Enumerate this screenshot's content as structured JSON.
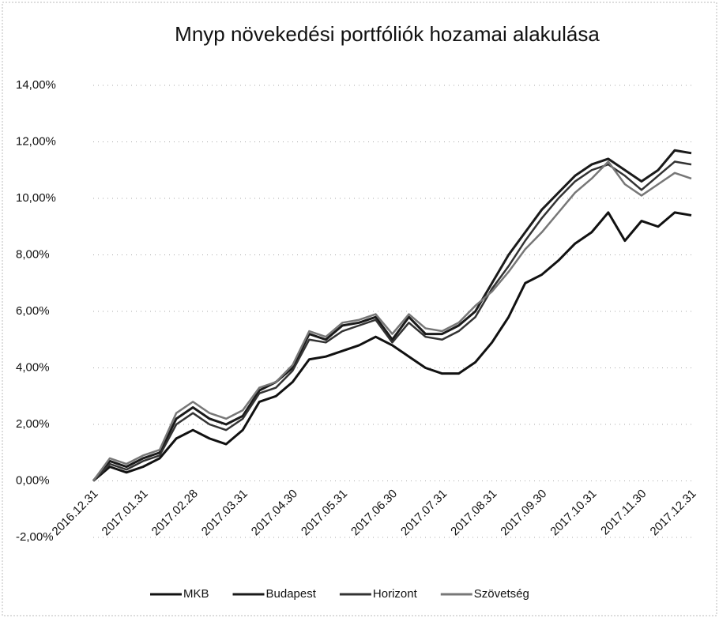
{
  "chart_data": {
    "type": "line",
    "title": "Mnyp növekedési portfóliók hozamai alakulása",
    "categories": [
      "2016.12.31",
      null,
      null,
      "2017.01.31",
      null,
      null,
      "2017.02.28",
      null,
      null,
      "2017.03.31",
      null,
      null,
      "2017.04.30",
      null,
      null,
      "2017.05.31",
      null,
      null,
      "2017.06.30",
      null,
      null,
      "2017.07.31",
      null,
      null,
      "2017.08.31",
      null,
      null,
      "2017.09.30",
      null,
      null,
      "2017.10.31",
      null,
      null,
      "2017.11.30",
      null,
      null,
      "2017.12.31"
    ],
    "series": [
      {
        "name": "MKB",
        "color": "#111111",
        "values": [
          0,
          0.5,
          0.3,
          0.5,
          0.8,
          1.5,
          1.8,
          1.5,
          1.3,
          1.8,
          2.8,
          3.0,
          3.5,
          4.3,
          4.4,
          4.6,
          4.8,
          5.1,
          4.8,
          4.4,
          4.0,
          3.8,
          3.8,
          4.2,
          4.9,
          5.8,
          7.0,
          7.3,
          7.8,
          8.4,
          8.8,
          9.5,
          8.5,
          9.2,
          9.0,
          9.5,
          9.4
        ]
      },
      {
        "name": "Budapest",
        "color": "#1a1a1a",
        "values": [
          0,
          0.7,
          0.5,
          0.8,
          1.0,
          2.2,
          2.6,
          2.2,
          2.0,
          2.3,
          3.2,
          3.5,
          4.0,
          5.2,
          5.0,
          5.5,
          5.6,
          5.8,
          5.0,
          5.8,
          5.2,
          5.2,
          5.5,
          6.0,
          7.0,
          8.0,
          8.8,
          9.6,
          10.2,
          10.8,
          11.2,
          11.4,
          11.0,
          10.6,
          11.0,
          11.7,
          11.6
        ]
      },
      {
        "name": "Horizont",
        "color": "#333333",
        "values": [
          0,
          0.6,
          0.4,
          0.7,
          0.9,
          2.0,
          2.4,
          2.0,
          1.8,
          2.2,
          3.1,
          3.3,
          3.9,
          5.0,
          4.9,
          5.3,
          5.5,
          5.7,
          4.9,
          5.6,
          5.1,
          5.0,
          5.3,
          5.8,
          6.8,
          7.6,
          8.5,
          9.3,
          10.0,
          10.6,
          11.0,
          11.2,
          10.8,
          10.3,
          10.8,
          11.3,
          11.2
        ]
      },
      {
        "name": "Szövetség",
        "color": "#777777",
        "values": [
          0,
          0.8,
          0.6,
          0.9,
          1.1,
          2.4,
          2.8,
          2.4,
          2.2,
          2.5,
          3.3,
          3.5,
          4.1,
          5.3,
          5.1,
          5.6,
          5.7,
          5.9,
          5.2,
          5.9,
          5.4,
          5.3,
          5.6,
          6.2,
          6.7,
          7.4,
          8.2,
          8.8,
          9.5,
          10.2,
          10.7,
          11.3,
          10.5,
          10.1,
          10.5,
          10.9,
          10.7
        ]
      }
    ],
    "ylim": [
      -2,
      14
    ],
    "yticks": [
      {
        "value": -2,
        "label": "-2,00%"
      },
      {
        "value": 0,
        "label": "0,00%"
      },
      {
        "value": 2,
        "label": "2,00%"
      },
      {
        "value": 4,
        "label": "4,00%"
      },
      {
        "value": 6,
        "label": "6,00%"
      },
      {
        "value": 8,
        "label": "8,00%"
      },
      {
        "value": 10,
        "label": "10,00%"
      },
      {
        "value": 12,
        "label": "12,00%"
      },
      {
        "value": 14,
        "label": "14,00%"
      }
    ],
    "grid": true
  }
}
